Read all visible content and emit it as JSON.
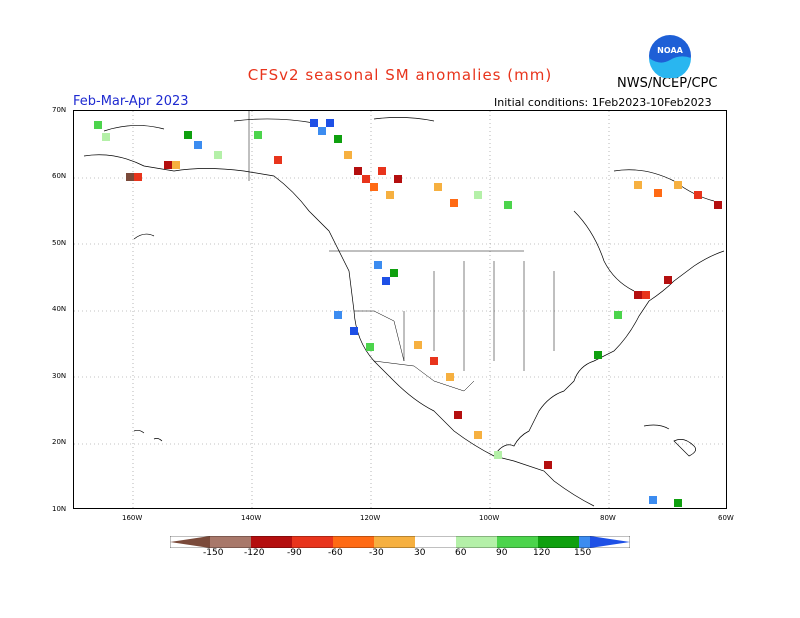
{
  "header": {
    "title": "CFSv2 seasonal SM anomalies (mm)",
    "agency": "NWS/NCEP/CPC",
    "period": "Feb-Mar-Apr 2023",
    "initial_conditions": "Initial conditions: 1Feb2023-10Feb2023"
  },
  "logo": {
    "text": "NOAA",
    "icon": "noaa-logo-icon"
  },
  "axes": {
    "lat_labels": [
      "70N",
      "60N",
      "50N",
      "40N",
      "30N",
      "20N",
      "10N"
    ],
    "lon_labels": [
      "160W",
      "140W",
      "120W",
      "100W",
      "80W",
      "60W"
    ]
  },
  "colorbar": {
    "labels": [
      "-150",
      "-120",
      "-90",
      "-60",
      "-30",
      "30",
      "60",
      "90",
      "120",
      "150"
    ],
    "colors": [
      "#7a4a3a",
      "#a8786a",
      "#b40f0f",
      "#e8341c",
      "#ff6a14",
      "#f6b040",
      "#ffffff",
      "#b4f0a8",
      "#4cd44c",
      "#0fa00f",
      "#3c8cf0",
      "#1e50e6"
    ]
  },
  "colors": {
    "coast": "#000000",
    "grid": "#888888"
  }
}
